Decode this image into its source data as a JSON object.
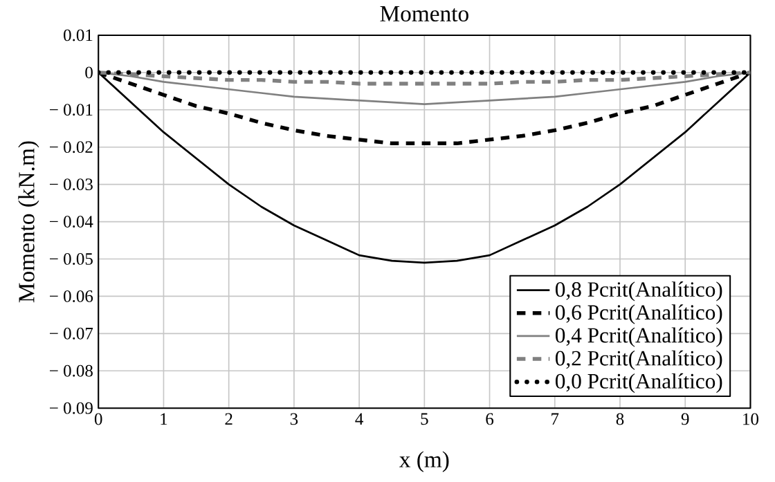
{
  "chart_data": {
    "type": "line",
    "title": "Momento",
    "xlabel": "x (m)",
    "ylabel": "Momento (kN.m)",
    "x": [
      0,
      0.5,
      1,
      1.5,
      2,
      2.5,
      3,
      3.5,
      4,
      4.5,
      5,
      5.5,
      6,
      6.5,
      7,
      7.5,
      8,
      8.5,
      9,
      9.5,
      10
    ],
    "series": [
      {
        "name": "0,8 Pcrit(Analítico)",
        "color": "#000000",
        "line_style": "solid",
        "values": [
          0,
          -0.008,
          -0.016,
          -0.023,
          -0.03,
          -0.036,
          -0.041,
          -0.045,
          -0.049,
          -0.0505,
          -0.051,
          -0.0505,
          -0.049,
          -0.045,
          -0.041,
          -0.036,
          -0.03,
          -0.023,
          -0.016,
          -0.008,
          0
        ]
      },
      {
        "name": "0,6 Pcrit(Analítico)",
        "color": "#000000",
        "line_style": "dashed",
        "values": [
          0,
          -0.003,
          -0.006,
          -0.009,
          -0.011,
          -0.0135,
          -0.0155,
          -0.017,
          -0.018,
          -0.019,
          -0.019,
          -0.019,
          -0.018,
          -0.017,
          -0.0155,
          -0.0135,
          -0.011,
          -0.009,
          -0.006,
          -0.003,
          0
        ]
      },
      {
        "name": "0,4 Pcrit(Analítico)",
        "color": "#808080",
        "line_style": "solid",
        "values": [
          0,
          -0.001,
          -0.0025,
          -0.0035,
          -0.0045,
          -0.0055,
          -0.0065,
          -0.007,
          -0.0075,
          -0.008,
          -0.0085,
          -0.008,
          -0.0075,
          -0.007,
          -0.0065,
          -0.0055,
          -0.0045,
          -0.0035,
          -0.0025,
          -0.001,
          0
        ]
      },
      {
        "name": "0,2 Pcrit(Analítico)",
        "color": "#808080",
        "line_style": "dashed",
        "values": [
          0,
          -0.0005,
          -0.001,
          -0.0015,
          -0.002,
          -0.002,
          -0.0025,
          -0.0025,
          -0.003,
          -0.003,
          -0.003,
          -0.003,
          -0.003,
          -0.0025,
          -0.0025,
          -0.002,
          -0.002,
          -0.0015,
          -0.001,
          -0.0005,
          0
        ]
      },
      {
        "name": "0,0 Pcrit(Analítico)",
        "color": "#000000",
        "line_style": "dotted",
        "values": [
          0,
          0,
          0,
          0,
          0,
          0,
          0,
          0,
          0,
          0,
          0,
          0,
          0,
          0,
          0,
          0,
          0,
          0,
          0,
          0,
          0
        ]
      }
    ],
    "xlim": [
      0,
      10
    ],
    "ylim": [
      -0.09,
      0.01
    ],
    "xticks": [
      0,
      1,
      2,
      3,
      4,
      5,
      6,
      7,
      8,
      9,
      10
    ],
    "yticks": [
      0.01,
      0,
      {
        "value": -0.01,
        "label": "− 0.01"
      },
      {
        "value": -0.02,
        "label": "− 0.02"
      },
      {
        "value": -0.03,
        "label": "− 0.03"
      },
      {
        "value": -0.04,
        "label": "− 0.04"
      },
      {
        "value": -0.05,
        "label": "− 0.05"
      },
      {
        "value": -0.06,
        "label": "− 0.06"
      },
      {
        "value": -0.07,
        "label": "− 0.07"
      },
      {
        "value": -0.08,
        "label": "− 0.08"
      },
      {
        "value": -0.09,
        "label": "− 0.09"
      }
    ],
    "grid": true,
    "legend": "bottom right"
  }
}
